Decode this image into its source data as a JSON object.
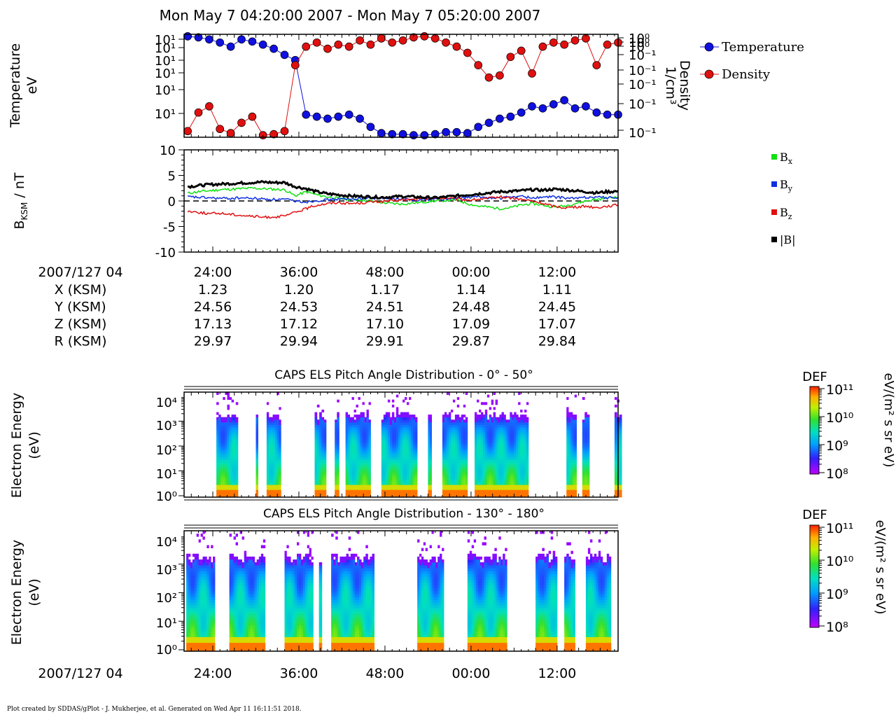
{
  "title": "Mon May 7 04:20:00 2007 - Mon May 7 05:20:00 2007",
  "footer": "Plot created by SDDAS/gPlot - J. Mukherjee, et al.  Generated on Wed Apr 11 16:11:51 2018.",
  "ephemeris": {
    "time_label": "2007/127 04",
    "time_ticks": [
      "24:00",
      "36:00",
      "48:00",
      "00:00",
      "12:00"
    ],
    "rows": [
      {
        "label": "X (KSM)",
        "values": [
          "1.23",
          "1.20",
          "1.17",
          "1.14",
          "1.11"
        ]
      },
      {
        "label": "Y (KSM)",
        "values": [
          "24.56",
          "24.53",
          "24.51",
          "24.48",
          "24.45"
        ]
      },
      {
        "label": "Z (KSM)",
        "values": [
          "17.13",
          "17.12",
          "17.10",
          "17.09",
          "17.07"
        ]
      },
      {
        "label": "R (KSM)",
        "values": [
          "29.97",
          "29.94",
          "29.91",
          "29.87",
          "29.84"
        ]
      }
    ]
  },
  "bottom_axis": {
    "time_label": "2007/127 04",
    "ticks": [
      "24:00",
      "36:00",
      "48:00",
      "00:00",
      "12:00"
    ]
  },
  "colorbars": [
    {
      "title": "DEF",
      "units": "eV/(m² s sr eV)",
      "labels": [
        "10¹¹",
        "10¹⁰",
        "10⁹",
        "10⁸"
      ]
    },
    {
      "title": "DEF",
      "units": "eV/(m² s sr eV)",
      "labels": [
        "10¹¹",
        "10¹⁰",
        "10⁹",
        "10⁸"
      ]
    }
  ],
  "colors": {
    "temperature": "#1010e0",
    "density": "#e01010",
    "bx": "#10e010",
    "by": "#1030e0",
    "bz": "#e01010",
    "btot": "#000000"
  },
  "chart_data": [
    {
      "type": "scatter",
      "title": "",
      "xlabel": "",
      "ylabel": "Temperature eV",
      "ylabel_lines": [
        "Temperature",
        "eV"
      ],
      "y2label": "Density 1/cm³",
      "y2label_lines": [
        "Density",
        "1/cm³"
      ],
      "y_tick_labels": [
        "10¹",
        "10¹",
        "10¹",
        "10¹",
        "10¹",
        "10¹"
      ],
      "y2_tick_labels": [
        "10⁰",
        "10⁰",
        "10⁰",
        "10⁻¹",
        "10⁻¹",
        "10⁻¹",
        "10⁻¹"
      ],
      "x_tick_labels": [
        "24:00",
        "36:00",
        "48:00",
        "00:00",
        "12:00"
      ],
      "legend_position": "right",
      "series": [
        {
          "name": "Temperature",
          "x": [
            20.5,
            22,
            23.5,
            25,
            26.5,
            28,
            29.5,
            31,
            32.5,
            34,
            35.5,
            37,
            38.5,
            40,
            41.5,
            43,
            44.5,
            46,
            47.5,
            49,
            50.5,
            52,
            53.5,
            55,
            56.5,
            58,
            59.5,
            61,
            62.5,
            64,
            65.5,
            67,
            68.5,
            70,
            71.5,
            73,
            74.5,
            76,
            77.5,
            79,
            80.5
          ],
          "y": [
            0.98,
            0.97,
            0.95,
            0.92,
            0.88,
            0.95,
            0.93,
            0.9,
            0.86,
            0.8,
            0.75,
            0.22,
            0.2,
            0.18,
            0.2,
            0.22,
            0.18,
            0.1,
            0.04,
            0.03,
            0.03,
            0.02,
            0.02,
            0.03,
            0.05,
            0.05,
            0.04,
            0.1,
            0.14,
            0.18,
            0.2,
            0.24,
            0.3,
            0.28,
            0.32,
            0.36,
            0.28,
            0.3,
            0.24,
            0.22,
            0.22
          ]
        },
        {
          "name": "Density",
          "x": [
            20.5,
            22,
            23.5,
            25,
            26.5,
            28,
            29.5,
            31,
            32.5,
            34,
            35.5,
            37,
            38.5,
            40,
            41.5,
            43,
            44.5,
            46,
            47.5,
            49,
            50.5,
            52,
            53.5,
            55,
            56.5,
            58,
            59.5,
            61,
            62.5,
            64,
            65.5,
            67,
            68.5,
            70,
            71.5,
            73,
            74.5,
            76,
            77.5,
            79,
            80.5
          ],
          "y": [
            0.06,
            0.24,
            0.3,
            0.08,
            0.04,
            0.14,
            0.2,
            0.02,
            0.03,
            0.06,
            0.7,
            0.88,
            0.92,
            0.86,
            0.9,
            0.88,
            0.94,
            0.9,
            0.96,
            0.92,
            0.94,
            0.97,
            0.98,
            0.96,
            0.92,
            0.88,
            0.82,
            0.7,
            0.58,
            0.6,
            0.78,
            0.84,
            0.62,
            0.88,
            0.92,
            0.9,
            0.94,
            0.96,
            0.7,
            0.9,
            0.92
          ]
        }
      ]
    },
    {
      "type": "line",
      "title": "",
      "xlabel": "",
      "ylabel": "B_KSM / nT",
      "ylabel_main": "B",
      "ylabel_sub": "KSM",
      "ylabel_rest": " / nT",
      "ylim": [
        -10,
        10
      ],
      "y_ticks": [
        -10,
        -5,
        0,
        5,
        10
      ],
      "x_tick_labels": [
        "24:00",
        "36:00",
        "48:00",
        "00:00",
        "12:00"
      ],
      "legend_position": "right",
      "x": [
        20.5,
        22,
        23.5,
        25,
        26.5,
        28,
        29.5,
        31,
        32.5,
        34,
        35.5,
        37,
        38.5,
        40,
        41.5,
        43,
        44.5,
        46,
        47.5,
        49,
        50.5,
        52,
        53.5,
        55,
        56.5,
        58,
        59.5,
        61,
        62.5,
        64,
        65.5,
        67,
        68.5,
        70,
        71.5,
        73,
        74.5,
        76,
        77.5,
        79,
        80.5
      ],
      "series": [
        {
          "name": "B",
          "sub": "x",
          "values": [
            1.5,
            1.8,
            2.0,
            2.2,
            2.3,
            2.4,
            2.5,
            2.4,
            2.3,
            2.2,
            1.0,
            1.8,
            1.2,
            0.8,
            0.5,
            0.3,
            0.2,
            0.0,
            -0.3,
            -0.5,
            -0.6,
            -0.4,
            -0.2,
            0.0,
            0.1,
            0.2,
            -0.5,
            -1.0,
            -1.2,
            -1.5,
            -1.3,
            -0.8,
            -0.5,
            -0.8,
            -1.2,
            -1.0,
            -0.5,
            0.0,
            0.3,
            0.6,
            0.8
          ]
        },
        {
          "name": "B",
          "sub": "y",
          "values": [
            0.8,
            0.7,
            0.6,
            0.5,
            0.5,
            0.6,
            0.5,
            0.4,
            0.3,
            0.3,
            0.0,
            -0.2,
            0.1,
            0.2,
            0.4,
            0.3,
            0.5,
            0.6,
            0.5,
            0.4,
            0.3,
            0.2,
            0.3,
            0.4,
            0.3,
            0.5,
            0.7,
            0.8,
            0.6,
            0.5,
            0.8,
            0.9,
            0.6,
            0.7,
            0.8,
            0.6,
            0.5,
            0.7,
            0.8,
            0.6,
            0.7
          ]
        },
        {
          "name": "B",
          "sub": "z",
          "values": [
            -2.0,
            -2.2,
            -2.5,
            -2.4,
            -2.6,
            -2.8,
            -3.0,
            -3.2,
            -3.1,
            -3.0,
            -2.2,
            -1.5,
            -0.8,
            -0.5,
            -0.3,
            -0.5,
            -0.4,
            -0.2,
            -0.1,
            0.0,
            0.2,
            0.3,
            0.4,
            0.5,
            0.6,
            0.4,
            0.2,
            0.3,
            0.5,
            0.8,
            0.6,
            0.3,
            0.0,
            -0.5,
            -1.0,
            -1.3,
            -1.2,
            -1.0,
            -1.3,
            -1.0,
            -0.8
          ]
        },
        {
          "name": "|B|",
          "sub": "",
          "values": [
            2.8,
            3.0,
            3.2,
            3.3,
            3.4,
            3.5,
            3.6,
            3.7,
            3.6,
            3.6,
            2.8,
            2.4,
            1.8,
            1.4,
            1.2,
            1.0,
            0.9,
            0.8,
            0.7,
            0.8,
            0.9,
            0.8,
            0.7,
            0.6,
            0.8,
            1.0,
            1.2,
            1.4,
            1.6,
            1.8,
            1.9,
            2.0,
            2.2,
            2.1,
            2.3,
            2.2,
            2.0,
            1.8,
            1.6,
            1.8,
            1.9
          ]
        }
      ]
    },
    {
      "type": "heatmap",
      "title": "CAPS ELS Pitch Angle Distribution - 0° - 50°",
      "xlabel": "",
      "ylabel": "Electron Energy (eV)",
      "ylabel_lines": [
        "Electron Energy",
        "(eV)"
      ],
      "y_tick_labels": [
        "10⁴",
        "10³",
        "10²",
        "10¹",
        "10⁰"
      ],
      "x_tick_labels": [
        "24:00",
        "36:00",
        "48:00",
        "00:00",
        "12:00"
      ],
      "data_intervals": [
        [
          24.5,
          27.5
        ],
        [
          30.0,
          30.3
        ],
        [
          31.5,
          33.5
        ],
        [
          38.2,
          39.8
        ],
        [
          41.0,
          41.6
        ],
        [
          42.5,
          46.0
        ],
        [
          47.5,
          52.5
        ],
        [
          54.0,
          54.5
        ],
        [
          56.0,
          59.5
        ],
        [
          60.5,
          68.0
        ],
        [
          73.3,
          74.7
        ],
        [
          75.5,
          76.5
        ],
        [
          80.0,
          81.0
        ]
      ],
      "colorbar_log_range": [
        8,
        11
      ]
    },
    {
      "type": "heatmap",
      "title": "CAPS ELS Pitch Angle Distribution - 130° - 180°",
      "xlabel": "",
      "ylabel": "Electron Energy (eV)",
      "ylabel_lines": [
        "Electron Energy",
        "(eV)"
      ],
      "y_tick_labels": [
        "10⁴",
        "10³",
        "10²",
        "10¹",
        "10⁰"
      ],
      "x_tick_labels": [
        "24:00",
        "36:00",
        "48:00",
        "00:00",
        "12:00"
      ],
      "data_intervals": [
        [
          20.3,
          24.3
        ],
        [
          26.3,
          31.3
        ],
        [
          34.0,
          38.0
        ],
        [
          38.8,
          39.2
        ],
        [
          40.5,
          46.5
        ],
        [
          52.5,
          56.2
        ],
        [
          59.5,
          65.0
        ],
        [
          69.0,
          72.0
        ],
        [
          73.0,
          74.5
        ],
        [
          76.0,
          79.5
        ]
      ],
      "colorbar_log_range": [
        8,
        11
      ]
    }
  ]
}
